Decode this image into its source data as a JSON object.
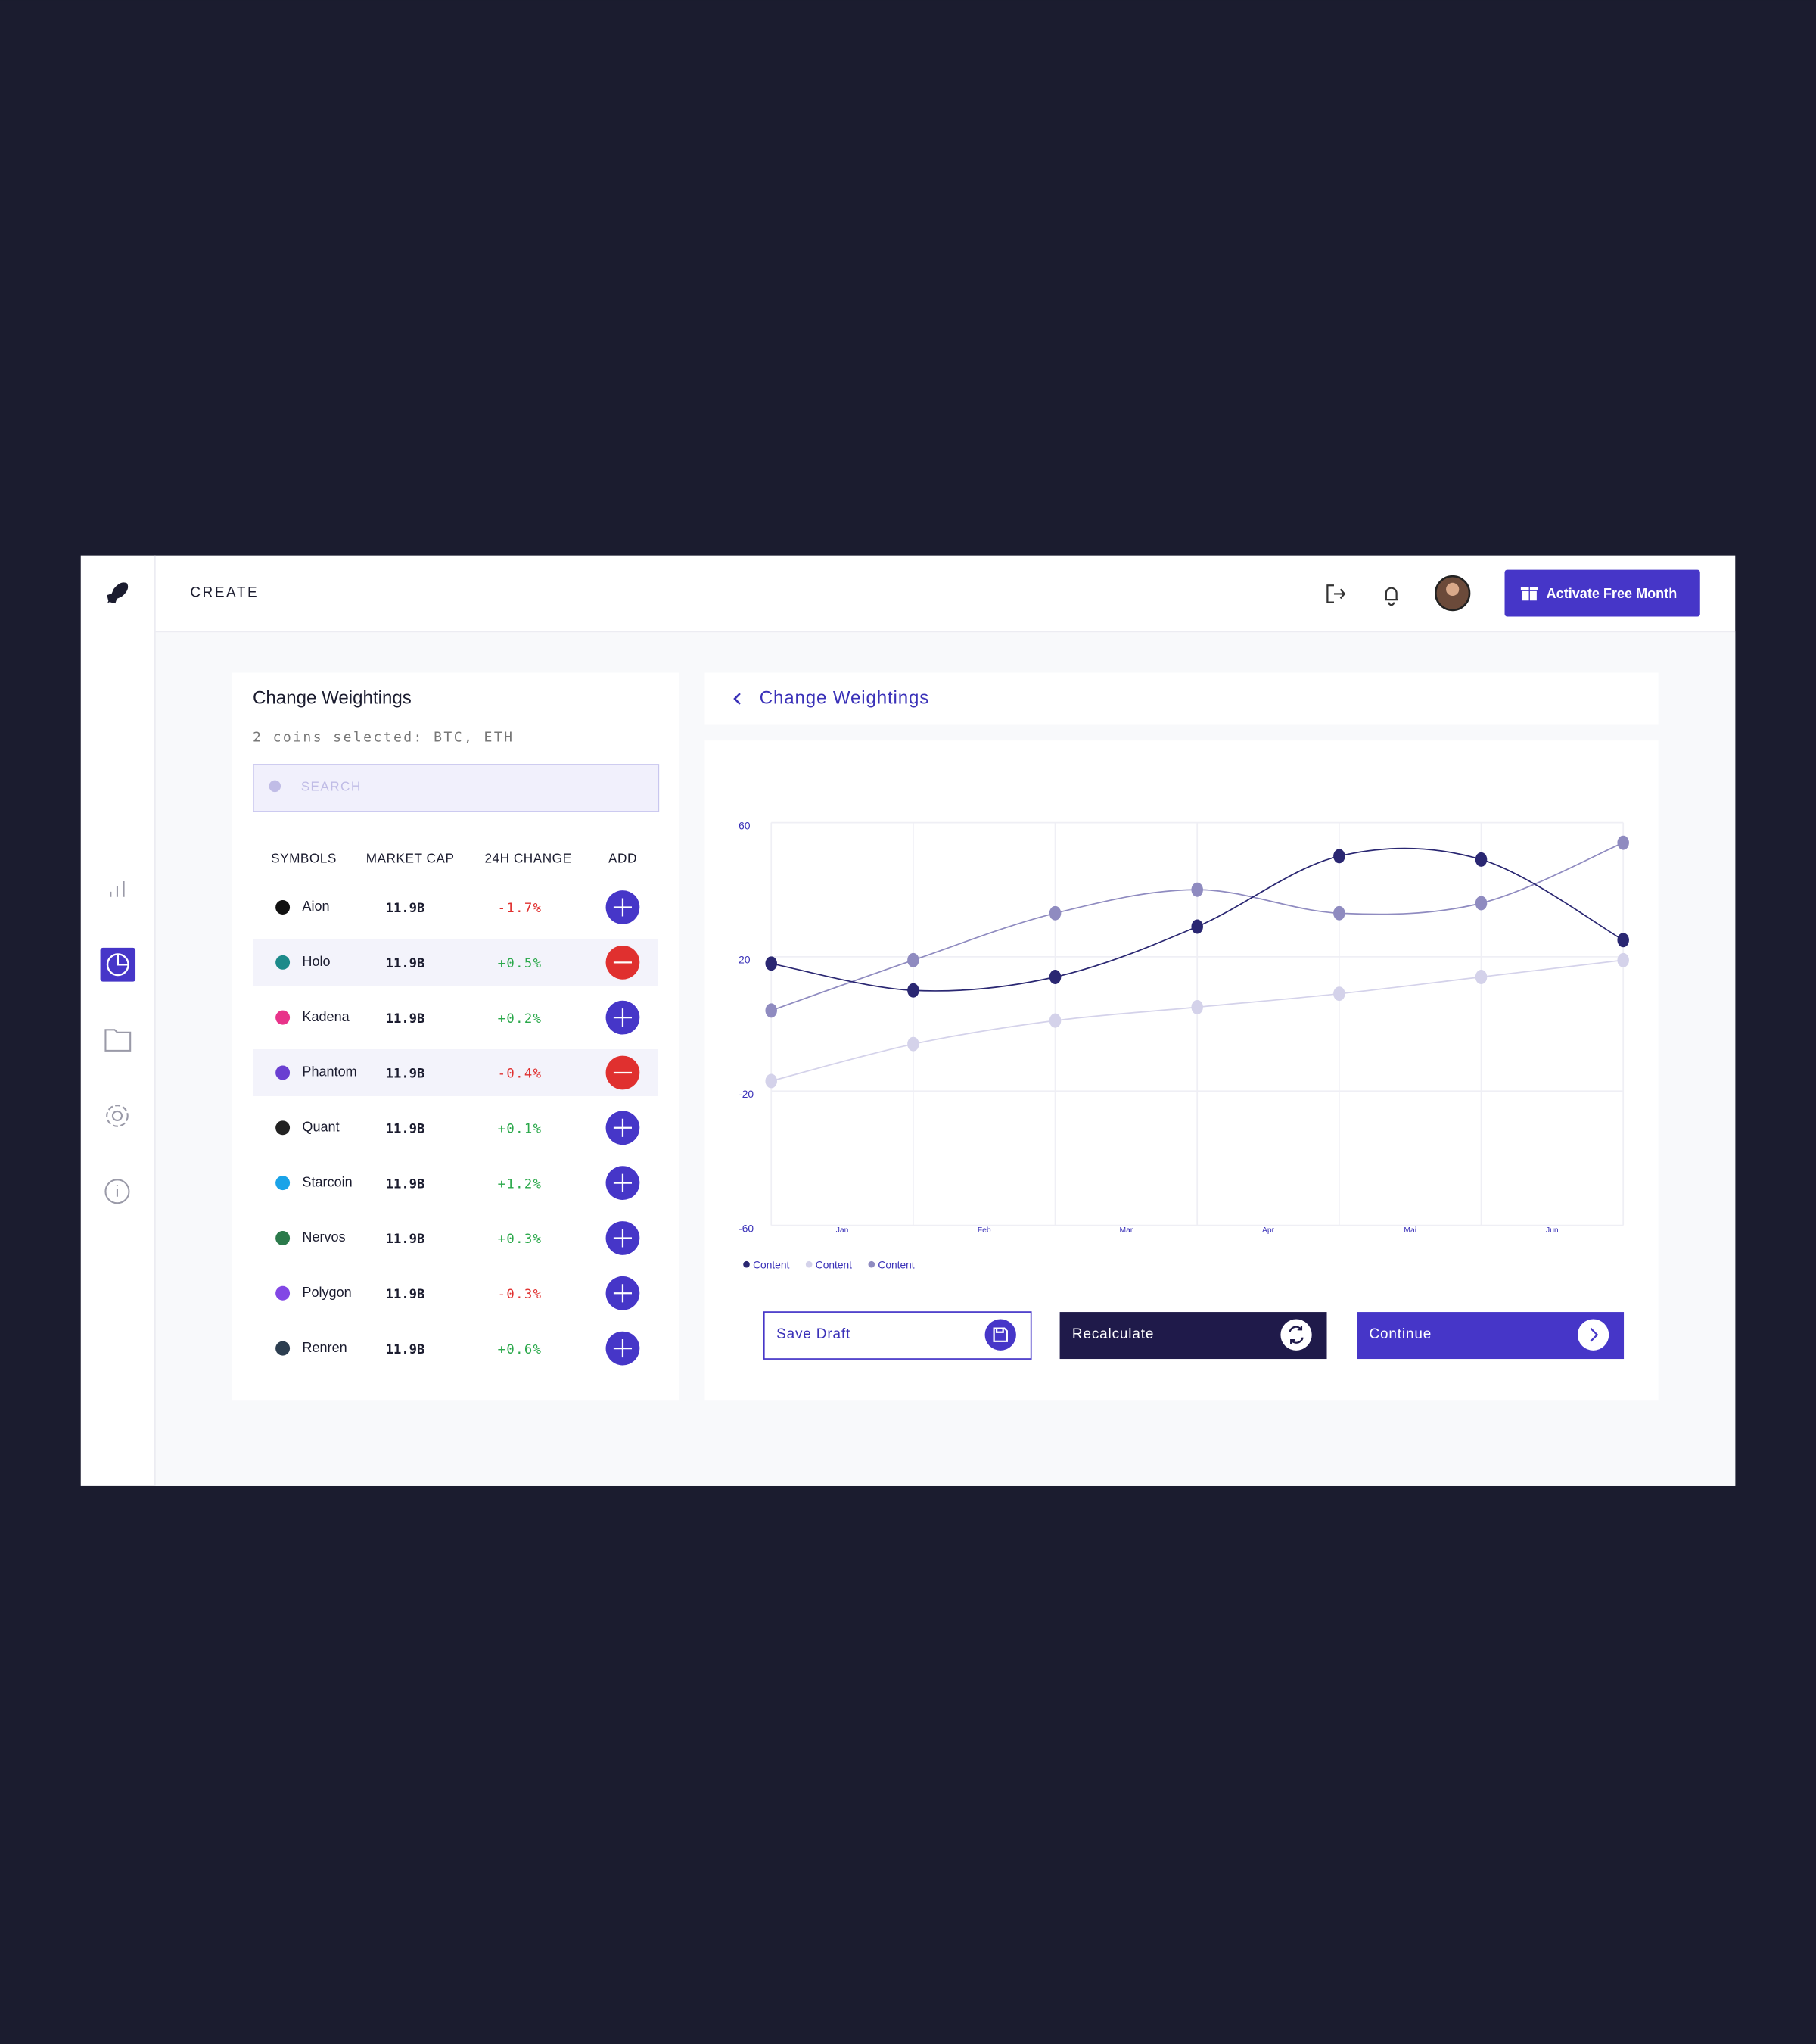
{
  "header": {
    "brand": "CREATE",
    "button": "Activate Free Month"
  },
  "left": {
    "title": "Change Weightings",
    "subtitle": "2 coins selected: BTC, ETH",
    "search": "SEARCH",
    "columns": [
      "SYMBOLS",
      "MARKET CAP",
      "24H CHANGE",
      "ADD"
    ],
    "rows": [
      {
        "name": "Aion",
        "cap": "11.9B",
        "change": "-1.7%",
        "selected": false,
        "color": "#111111"
      },
      {
        "name": "Holo",
        "cap": "11.9B",
        "change": "+0.5%",
        "selected": true,
        "color": "#1c8a8a"
      },
      {
        "name": "Kadena",
        "cap": "11.9B",
        "change": "+0.2%",
        "selected": false,
        "color": "#e8338a"
      },
      {
        "name": "Phantom",
        "cap": "11.9B",
        "change": "-0.4%",
        "selected": true,
        "color": "#6a3fd1"
      },
      {
        "name": "Quant",
        "cap": "11.9B",
        "change": "+0.1%",
        "selected": false,
        "color": "#222222"
      },
      {
        "name": "Starcoin",
        "cap": "11.9B",
        "change": "+1.2%",
        "selected": false,
        "color": "#1aa3e8"
      },
      {
        "name": "Nervos",
        "cap": "11.9B",
        "change": "+0.3%",
        "selected": false,
        "color": "#2b7a4b"
      },
      {
        "name": "Polygon",
        "cap": "11.9B",
        "change": "-0.3%",
        "selected": false,
        "color": "#8247e5"
      },
      {
        "name": "Renren",
        "cap": "11.9B",
        "change": "+0.6%",
        "selected": false,
        "color": "#2c3e50"
      }
    ]
  },
  "right": {
    "title": "Change Weightings"
  },
  "chart_data": {
    "type": "line",
    "categories": [
      "Jan",
      "Feb",
      "Mar",
      "Apr",
      "Mai",
      "Jun",
      null
    ],
    "series": [
      {
        "name": "Content",
        "color": "#2a2772",
        "values": [
          18,
          10,
          14,
          29,
          50,
          49,
          25
        ]
      },
      {
        "name": "Content",
        "color": "#d4d2ea",
        "values": [
          -17,
          -6,
          1,
          5,
          9,
          14,
          19
        ]
      },
      {
        "name": "Content",
        "color": "#8f8bc0",
        "values": [
          4,
          19,
          33,
          40,
          33,
          36,
          54
        ]
      }
    ],
    "ylim": [
      -60,
      60
    ],
    "yticks": [
      60,
      20,
      -20,
      -60
    ],
    "grid": true
  },
  "buttons": [
    "Save Draft",
    "Recalculate",
    "Continue"
  ]
}
